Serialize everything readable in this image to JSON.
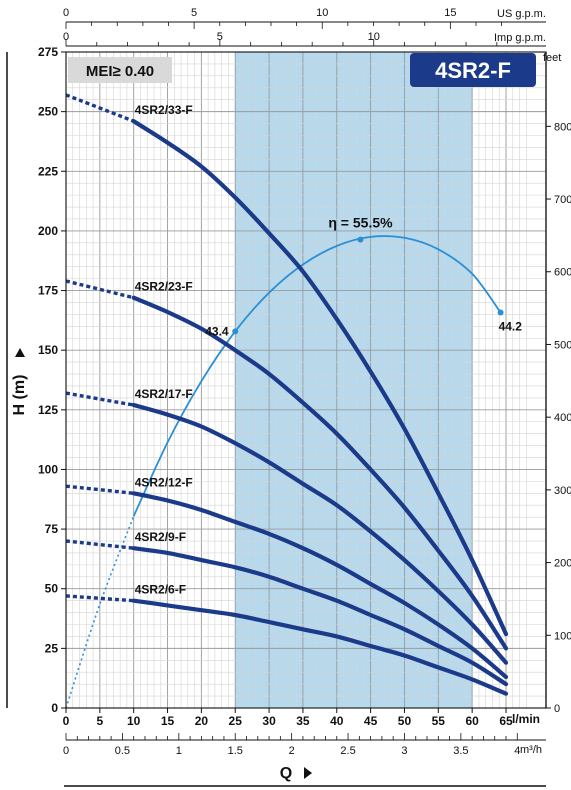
{
  "chart_data": {
    "type": "line",
    "title": "4SR2-F",
    "mei_label": "MEI≥ 0.40",
    "ylabel": "H (m)",
    "xlabel": "Q",
    "ylim": [
      0,
      275
    ],
    "xlim": [
      0,
      65
    ],
    "y_ticks": [
      "0",
      "25",
      "50",
      "75",
      "100",
      "125",
      "150",
      "175",
      "200",
      "225",
      "250",
      "275"
    ],
    "x_ticks": [
      "0",
      "5",
      "10",
      "15",
      "20",
      "25",
      "30",
      "35",
      "40",
      "45",
      "50",
      "55",
      "60",
      "65"
    ],
    "x_unit": "l/min",
    "m3h_ticks": [
      "0",
      "0.5",
      "1",
      "1.5",
      "2",
      "2.5",
      "3",
      "3.5",
      "4"
    ],
    "m3h_unit": "m³/h",
    "us_ticks": [
      "0",
      "5",
      "10",
      "15"
    ],
    "us_unit": "US g.p.m.",
    "imp_ticks": [
      "0",
      "5",
      "10"
    ],
    "imp_unit": "Imp g.p.m.",
    "feet_ticks": [
      "0",
      "100",
      "200",
      "300",
      "400",
      "500",
      "600",
      "700",
      "800"
    ],
    "feet_unit": "feet",
    "recommended_range": [
      25,
      60
    ],
    "grid": true,
    "series": [
      {
        "name": "4SR2/33-F",
        "x": [
          0,
          10,
          15,
          20,
          25,
          30,
          35,
          40,
          45,
          50,
          55,
          60,
          65
        ],
        "y": [
          257,
          246,
          237,
          227,
          214,
          199,
          183,
          163,
          141,
          117,
          90,
          62,
          31
        ]
      },
      {
        "name": "4SR2/23-F",
        "x": [
          0,
          10,
          15,
          20,
          25,
          30,
          35,
          40,
          45,
          50,
          55,
          60,
          65
        ],
        "y": [
          179,
          172,
          166,
          159,
          150,
          140,
          128,
          115,
          100,
          84,
          66,
          47,
          25
        ]
      },
      {
        "name": "4SR2/17-F",
        "x": [
          0,
          10,
          15,
          20,
          25,
          30,
          35,
          40,
          45,
          50,
          55,
          60,
          65
        ],
        "y": [
          132,
          127,
          123,
          118,
          111,
          103,
          94,
          85,
          74,
          62,
          49,
          35,
          19
        ]
      },
      {
        "name": "4SR2/12-F",
        "x": [
          0,
          10,
          15,
          20,
          25,
          30,
          35,
          40,
          45,
          50,
          55,
          60,
          65
        ],
        "y": [
          93,
          90,
          87,
          83,
          78,
          73,
          67,
          60,
          52,
          44,
          35,
          25,
          13
        ]
      },
      {
        "name": "4SR2/9-F",
        "x": [
          0,
          10,
          15,
          20,
          25,
          30,
          35,
          40,
          45,
          50,
          55,
          60,
          65
        ],
        "y": [
          70,
          67,
          65,
          62,
          59,
          55,
          50,
          45,
          39,
          33,
          26,
          19,
          10
        ]
      },
      {
        "name": "4SR2/6-F",
        "x": [
          0,
          10,
          15,
          20,
          25,
          30,
          35,
          40,
          45,
          50,
          55,
          60,
          65
        ],
        "y": [
          47,
          45,
          43,
          41,
          39,
          36,
          33,
          30,
          26,
          22,
          17,
          12,
          6
        ]
      }
    ],
    "efficiency": {
      "label": "η = 55.5%",
      "x": [
        0,
        5,
        10,
        15,
        20,
        25,
        30,
        35,
        40,
        45,
        50,
        55,
        60,
        64.2
      ],
      "y": [
        0,
        43.5,
        80.4,
        111.3,
        137.0,
        157.9,
        174.1,
        185.9,
        193.7,
        197.5,
        197.1,
        192.3,
        182.0,
        165.8
      ],
      "peak": {
        "x": 43.5,
        "label": "η = 55.5%"
      },
      "points": [
        {
          "x": 25,
          "label": "43.4"
        },
        {
          "x": 64.2,
          "label": "44.2"
        }
      ]
    }
  }
}
